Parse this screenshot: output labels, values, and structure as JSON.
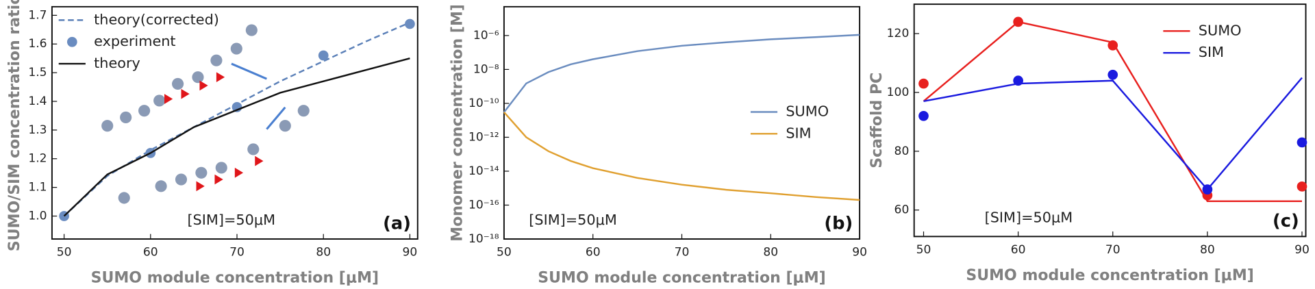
{
  "chart_data": [
    {
      "type": "line",
      "x": [
        50,
        55,
        60,
        65,
        70,
        75,
        80,
        85,
        90
      ],
      "xlabel": "SUMO module concentration [μM]",
      "ylabel": "SUMO/SIM concentration ratio",
      "xlim": [
        48.6,
        90.9
      ],
      "xticks": [
        50,
        60,
        70,
        80,
        90
      ],
      "ylim": [
        0.92,
        1.73
      ],
      "yticks": [
        {
          "value": 1.0,
          "label": "1.0"
        },
        1.1,
        1.2,
        1.3,
        1.4,
        1.5,
        1.6,
        1.7
      ],
      "legend": "upper left",
      "annotation": "[SIM]=50μM",
      "panel_label": "(a)",
      "series": [
        {
          "name": "theory(corrected)",
          "color": "#5b80b8",
          "dash": true,
          "values": [
            1.0,
            1.14,
            1.23,
            1.31,
            1.39,
            1.47,
            1.54,
            1.61,
            1.675
          ]
        },
        {
          "name": "experiment",
          "color": "#6a8cc0",
          "points_x": [
            50,
            60,
            70,
            80,
            90
          ],
          "points": [
            1.0,
            1.22,
            1.38,
            1.56,
            1.67
          ]
        },
        {
          "name": "theory",
          "color": "#111111",
          "values": [
            1.0,
            1.145,
            1.22,
            1.31,
            1.37,
            1.43,
            1.47,
            1.51,
            1.55
          ]
        }
      ]
    },
    {
      "type": "line",
      "x": [
        50,
        52.5,
        55,
        57.5,
        60,
        65,
        70,
        75,
        80,
        85,
        90
      ],
      "xlabel": "SUMO module concentration [μM]",
      "ylabel": "Monomer concentration [M]",
      "xlim": [
        50,
        90
      ],
      "xticks": [
        50,
        60,
        70,
        80,
        90
      ],
      "log_y": true,
      "ylim": [
        1e-18,
        5e-05
      ],
      "yticks": [
        {
          "value": 1e-18,
          "label": "10⁻¹⁸"
        },
        {
          "value": 1e-16,
          "label": "10⁻¹⁶"
        },
        {
          "value": 1e-14,
          "label": "10⁻¹⁴"
        },
        {
          "value": 1e-12,
          "label": "10⁻¹²"
        },
        {
          "value": 1e-10,
          "label": "10⁻¹⁰"
        },
        {
          "value": 1e-08,
          "label": "10⁻⁸"
        },
        {
          "value": 1e-06,
          "label": "10⁻⁶"
        }
      ],
      "legend": "center right",
      "annotation": "[SIM]=50μM",
      "panel_label": "(b)",
      "series": [
        {
          "name": "SUMO",
          "color": "#6a8cbf",
          "values": [
            3e-11,
            1.5e-09,
            7e-09,
            2e-08,
            4e-08,
            1.2e-07,
            2.5e-07,
            4e-07,
            6e-07,
            8e-07,
            1.1e-06
          ]
        },
        {
          "name": "SIM",
          "color": "#e0a030",
          "values": [
            3e-11,
            1e-12,
            1.5e-13,
            4e-14,
            1.5e-14,
            4e-15,
            1.6e-15,
            8e-16,
            5e-16,
            3e-16,
            2e-16
          ]
        }
      ]
    },
    {
      "type": "line",
      "x": [
        50,
        60,
        70,
        80,
        90
      ],
      "xlabel": "SUMO module concentration [μM]",
      "ylabel": "Scaffold PC",
      "xlim": [
        49.0,
        90.4
      ],
      "xticks": [
        50,
        60,
        70,
        80,
        90
      ],
      "ylim": [
        51,
        130
      ],
      "yticks": [
        60,
        80,
        100,
        120
      ],
      "legend": "upper right",
      "annotation": "[SIM]=50μM",
      "panel_label": "(c)",
      "series": [
        {
          "name": "SUMO",
          "color": "#e8201e",
          "values": [
            97,
            124,
            117,
            63,
            63
          ],
          "points_x": [
            50,
            60,
            70,
            80,
            90
          ],
          "points": [
            103,
            124,
            116,
            65,
            68
          ]
        },
        {
          "name": "SIM",
          "color": "#1a1adf",
          "values": [
            97,
            103,
            104,
            67,
            105
          ],
          "points_x": [
            50,
            60,
            70,
            80,
            90
          ],
          "points": [
            92,
            104,
            106,
            67,
            83
          ]
        }
      ]
    }
  ]
}
